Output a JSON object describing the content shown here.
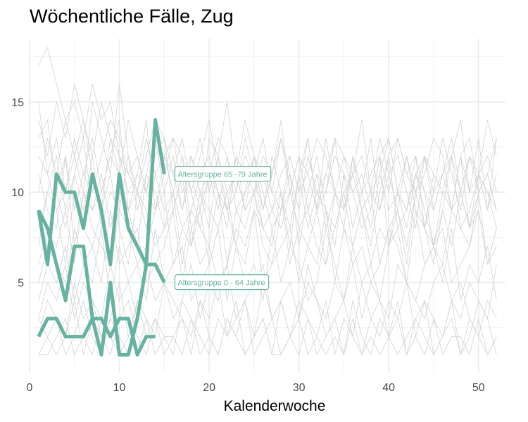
{
  "chart_data": {
    "type": "line",
    "title": "Wöchentliche Fälle, Zug",
    "xlabel": "Kalenderwoche",
    "ylabel": "",
    "xlim": [
      0,
      53
    ],
    "ylim": [
      0,
      18.5
    ],
    "x_ticks": [
      0,
      10,
      20,
      30,
      40,
      50
    ],
    "y_ticks": [
      5,
      10,
      15
    ],
    "grid": true,
    "highlight_color": "#66b3a1",
    "background_color": "#d3d3d3",
    "series": [
      {
        "name": "Altersgruppe 65 -79 Jahre",
        "highlight": true,
        "x": [
          1,
          2,
          3,
          4,
          5,
          6,
          7,
          8,
          9,
          10,
          11,
          12,
          13,
          14,
          15
        ],
        "y": [
          9,
          6,
          11,
          10,
          10,
          8,
          11,
          9,
          6,
          11,
          8,
          7,
          6,
          14,
          11
        ]
      },
      {
        "name": "Altersgruppe 0 - 64 Jahre",
        "highlight": true,
        "x": [
          1,
          2,
          3,
          4,
          5,
          6,
          7,
          8,
          9,
          10,
          11,
          12,
          13,
          14,
          15
        ],
        "y": [
          9,
          8,
          6,
          4,
          7,
          7,
          3,
          1,
          5,
          1,
          1,
          3,
          6,
          6,
          5
        ]
      },
      {
        "name": "",
        "highlight": true,
        "x": [
          1,
          2,
          3,
          4,
          5,
          6,
          7,
          8,
          9,
          10,
          11,
          12,
          13,
          14
        ],
        "y": [
          2,
          3,
          3,
          2,
          2,
          2,
          3,
          3,
          2,
          3,
          3,
          1,
          2,
          2
        ]
      }
    ],
    "background_series": [
      [
        17,
        18,
        16,
        14,
        15,
        13,
        16,
        14,
        15,
        12,
        11,
        10,
        12,
        14,
        13,
        9,
        11,
        12,
        10,
        9,
        8,
        10,
        11,
        9,
        12,
        10,
        8,
        9,
        11,
        7,
        10,
        12,
        9,
        8,
        10,
        11,
        9,
        7,
        10,
        12,
        8,
        9,
        11,
        10,
        7,
        9,
        12,
        10,
        8,
        11,
        9,
        13
      ],
      [
        14,
        12,
        15,
        13,
        16,
        14,
        12,
        15,
        13,
        11,
        14,
        12,
        10,
        13,
        12,
        11,
        13,
        10,
        12,
        14,
        11,
        9,
        10,
        12,
        11,
        13,
        10,
        9,
        12,
        10,
        11,
        13,
        12,
        10,
        9,
        11,
        12,
        10,
        13,
        11,
        9,
        12,
        10,
        11,
        13,
        12,
        9,
        10,
        12,
        11,
        10,
        9
      ],
      [
        10,
        13,
        11,
        14,
        12,
        10,
        15,
        13,
        11,
        16,
        12,
        9,
        11,
        13,
        10,
        12,
        9,
        11,
        13,
        10,
        12,
        15,
        11,
        9,
        10,
        12,
        11,
        14,
        10,
        12,
        9,
        11,
        10,
        13,
        12,
        10,
        11,
        9,
        12,
        10,
        13,
        11,
        12,
        10,
        9,
        11,
        12,
        14,
        10,
        11,
        12,
        10
      ],
      [
        12,
        11,
        9,
        10,
        13,
        11,
        10,
        12,
        14,
        13,
        11,
        12,
        10,
        9,
        11,
        13,
        12,
        10,
        8,
        11,
        9,
        12,
        10,
        13,
        11,
        9,
        12,
        10,
        8,
        11,
        13,
        9,
        10,
        12,
        11,
        8,
        10,
        13,
        9,
        11,
        12,
        10,
        8,
        12,
        11,
        10,
        9,
        12,
        13,
        10,
        11,
        9
      ],
      [
        8,
        10,
        12,
        9,
        11,
        13,
        9,
        10,
        12,
        11,
        9,
        10,
        13,
        11,
        12,
        10,
        8,
        9,
        11,
        12,
        10,
        9,
        12,
        11,
        10,
        8,
        9,
        11,
        12,
        10,
        13,
        9,
        11,
        10,
        8,
        12,
        9,
        10,
        11,
        13,
        10,
        9,
        12,
        8,
        10,
        11,
        9,
        12,
        10,
        13,
        9,
        11
      ],
      [
        9,
        7,
        10,
        8,
        11,
        9,
        12,
        8,
        10,
        9,
        12,
        10,
        8,
        11,
        9,
        10,
        12,
        8,
        9,
        11,
        10,
        8,
        12,
        9,
        10,
        11,
        9,
        8,
        10,
        12,
        9,
        11,
        8,
        10,
        9,
        12,
        10,
        8,
        11,
        9,
        10,
        12,
        9,
        8,
        11,
        10,
        9,
        12,
        8,
        10,
        11,
        9
      ],
      [
        11,
        9,
        8,
        12,
        7,
        10,
        9,
        11,
        8,
        10,
        9,
        7,
        11,
        10,
        8,
        9,
        11,
        7,
        10,
        8,
        12,
        9,
        7,
        10,
        11,
        8,
        9,
        10,
        7,
        11,
        8,
        10,
        9,
        7,
        11,
        10,
        8,
        9,
        12,
        7,
        10,
        8,
        11,
        9,
        7,
        10,
        12,
        8,
        9,
        11,
        10,
        8
      ],
      [
        7,
        10,
        9,
        6,
        10,
        8,
        7,
        9,
        11,
        8,
        6,
        10,
        9,
        7,
        8,
        10,
        6,
        9,
        8,
        7,
        10,
        6,
        9,
        8,
        10,
        7,
        6,
        9,
        10,
        8,
        7,
        9,
        6,
        10,
        8,
        7,
        9,
        10,
        6,
        8,
        9,
        7,
        10,
        8,
        6,
        9,
        7,
        10,
        8,
        9,
        6,
        8
      ],
      [
        6,
        8,
        7,
        9,
        6,
        10,
        8,
        7,
        6,
        9,
        8,
        6,
        7,
        9,
        10,
        6,
        8,
        7,
        9,
        6,
        8,
        10,
        7,
        6,
        9,
        8,
        7,
        10,
        6,
        8,
        9,
        7,
        6,
        8,
        10,
        7,
        9,
        6,
        8,
        7,
        9,
        6,
        10,
        8,
        7,
        6,
        9,
        8,
        7,
        10,
        6,
        8
      ],
      [
        5,
        7,
        6,
        5,
        8,
        6,
        7,
        5,
        9,
        6,
        7,
        8,
        5,
        6,
        7,
        9,
        5,
        8,
        6,
        7,
        5,
        6,
        8,
        7,
        9,
        5,
        6,
        7,
        8,
        5,
        7,
        6,
        9,
        5,
        8,
        6,
        7,
        5,
        6,
        8,
        7,
        5,
        9,
        6,
        7,
        8,
        5,
        6,
        7,
        9,
        6,
        7
      ],
      [
        4,
        6,
        5,
        7,
        4,
        6,
        5,
        8,
        4,
        7,
        5,
        6,
        4,
        8,
        5,
        6,
        7,
        4,
        5,
        6,
        8,
        4,
        7,
        5,
        6,
        4,
        8,
        5,
        7,
        6,
        4,
        5,
        8,
        6,
        4,
        7,
        5,
        6,
        4,
        7,
        8,
        5,
        4,
        6,
        7,
        5,
        8,
        4,
        6,
        5,
        7,
        4
      ],
      [
        3,
        5,
        4,
        6,
        3,
        5,
        4,
        3,
        6,
        4,
        5,
        3,
        6,
        4,
        5,
        3,
        4,
        6,
        3,
        5,
        4,
        6,
        3,
        4,
        5,
        6,
        3,
        4,
        5,
        3,
        6,
        4,
        3,
        5,
        4,
        6,
        3,
        5,
        4,
        3,
        6,
        5,
        4,
        3,
        5,
        6,
        4,
        3,
        5,
        4,
        3,
        6
      ],
      [
        2,
        4,
        3,
        2,
        5,
        3,
        4,
        2,
        3,
        5,
        2,
        4,
        3,
        2,
        5,
        4,
        3,
        2,
        4,
        3,
        5,
        2,
        3,
        4,
        2,
        5,
        3,
        4,
        2,
        3,
        5,
        4,
        2,
        3,
        4,
        2,
        5,
        3,
        2,
        4,
        3,
        5,
        2,
        4,
        3,
        2,
        4,
        5,
        3,
        2,
        4,
        3
      ],
      [
        1,
        2,
        3,
        1,
        2,
        4,
        2,
        1,
        3,
        2,
        1,
        4,
        2,
        3,
        1,
        2,
        3,
        1,
        4,
        2,
        1,
        3,
        2,
        4,
        1,
        2,
        3,
        1,
        2,
        4,
        3,
        1,
        2,
        3,
        1,
        4,
        2,
        1,
        3,
        2,
        4,
        1,
        3,
        2,
        1,
        2,
        4,
        1,
        3,
        2,
        1,
        2
      ],
      [
        1,
        1,
        2,
        3,
        1,
        2,
        1,
        3,
        2,
        1,
        2,
        1,
        3,
        1,
        2,
        2,
        1,
        3,
        1,
        2,
        1,
        3,
        2,
        1,
        2,
        3,
        1,
        1,
        2,
        1,
        3,
        2,
        1,
        2,
        1,
        3,
        1,
        2,
        1,
        2,
        3,
        1,
        2,
        1,
        3,
        1,
        2,
        2,
        1,
        3,
        1,
        2
      ],
      [
        3,
        2,
        1,
        2,
        4,
        1,
        3,
        2,
        1,
        3,
        4,
        2,
        1,
        3,
        2,
        1,
        4,
        3,
        2,
        1,
        3,
        2,
        4,
        1,
        2,
        3,
        1,
        4,
        2,
        3,
        1,
        2,
        4,
        1,
        3,
        2,
        1,
        3,
        4,
        2,
        1,
        2,
        3,
        4,
        1,
        2,
        3,
        1,
        2,
        4,
        3,
        1
      ],
      [
        15,
        11,
        13,
        10,
        12,
        14,
        11,
        9,
        13,
        12,
        10,
        11,
        14,
        9,
        12,
        13,
        10,
        11,
        9,
        13,
        12,
        10,
        11,
        14,
        12,
        9,
        11,
        13,
        10,
        12,
        11,
        9,
        13,
        10,
        12,
        11,
        14,
        10,
        9,
        12,
        13,
        11,
        10,
        12,
        9,
        11,
        13,
        10,
        12,
        11,
        14,
        12
      ],
      [
        13,
        14,
        10,
        12,
        9,
        11,
        13,
        10,
        12,
        14,
        9,
        11,
        10,
        12,
        13,
        11,
        9,
        12,
        10,
        11,
        13,
        12,
        9,
        10,
        12,
        11,
        10,
        13,
        11,
        9,
        12,
        10,
        11,
        13,
        9,
        12,
        10,
        11,
        12,
        13,
        10,
        9,
        11,
        12,
        10,
        13,
        11,
        9,
        12,
        10,
        11,
        13
      ]
    ],
    "annotations": [
      {
        "text": "Altersgruppe 65 -79 Jahre",
        "x": 16.5,
        "y": 11
      },
      {
        "text": "Altersgruppe 0 - 64 Jahre",
        "x": 16.5,
        "y": 5
      }
    ]
  }
}
